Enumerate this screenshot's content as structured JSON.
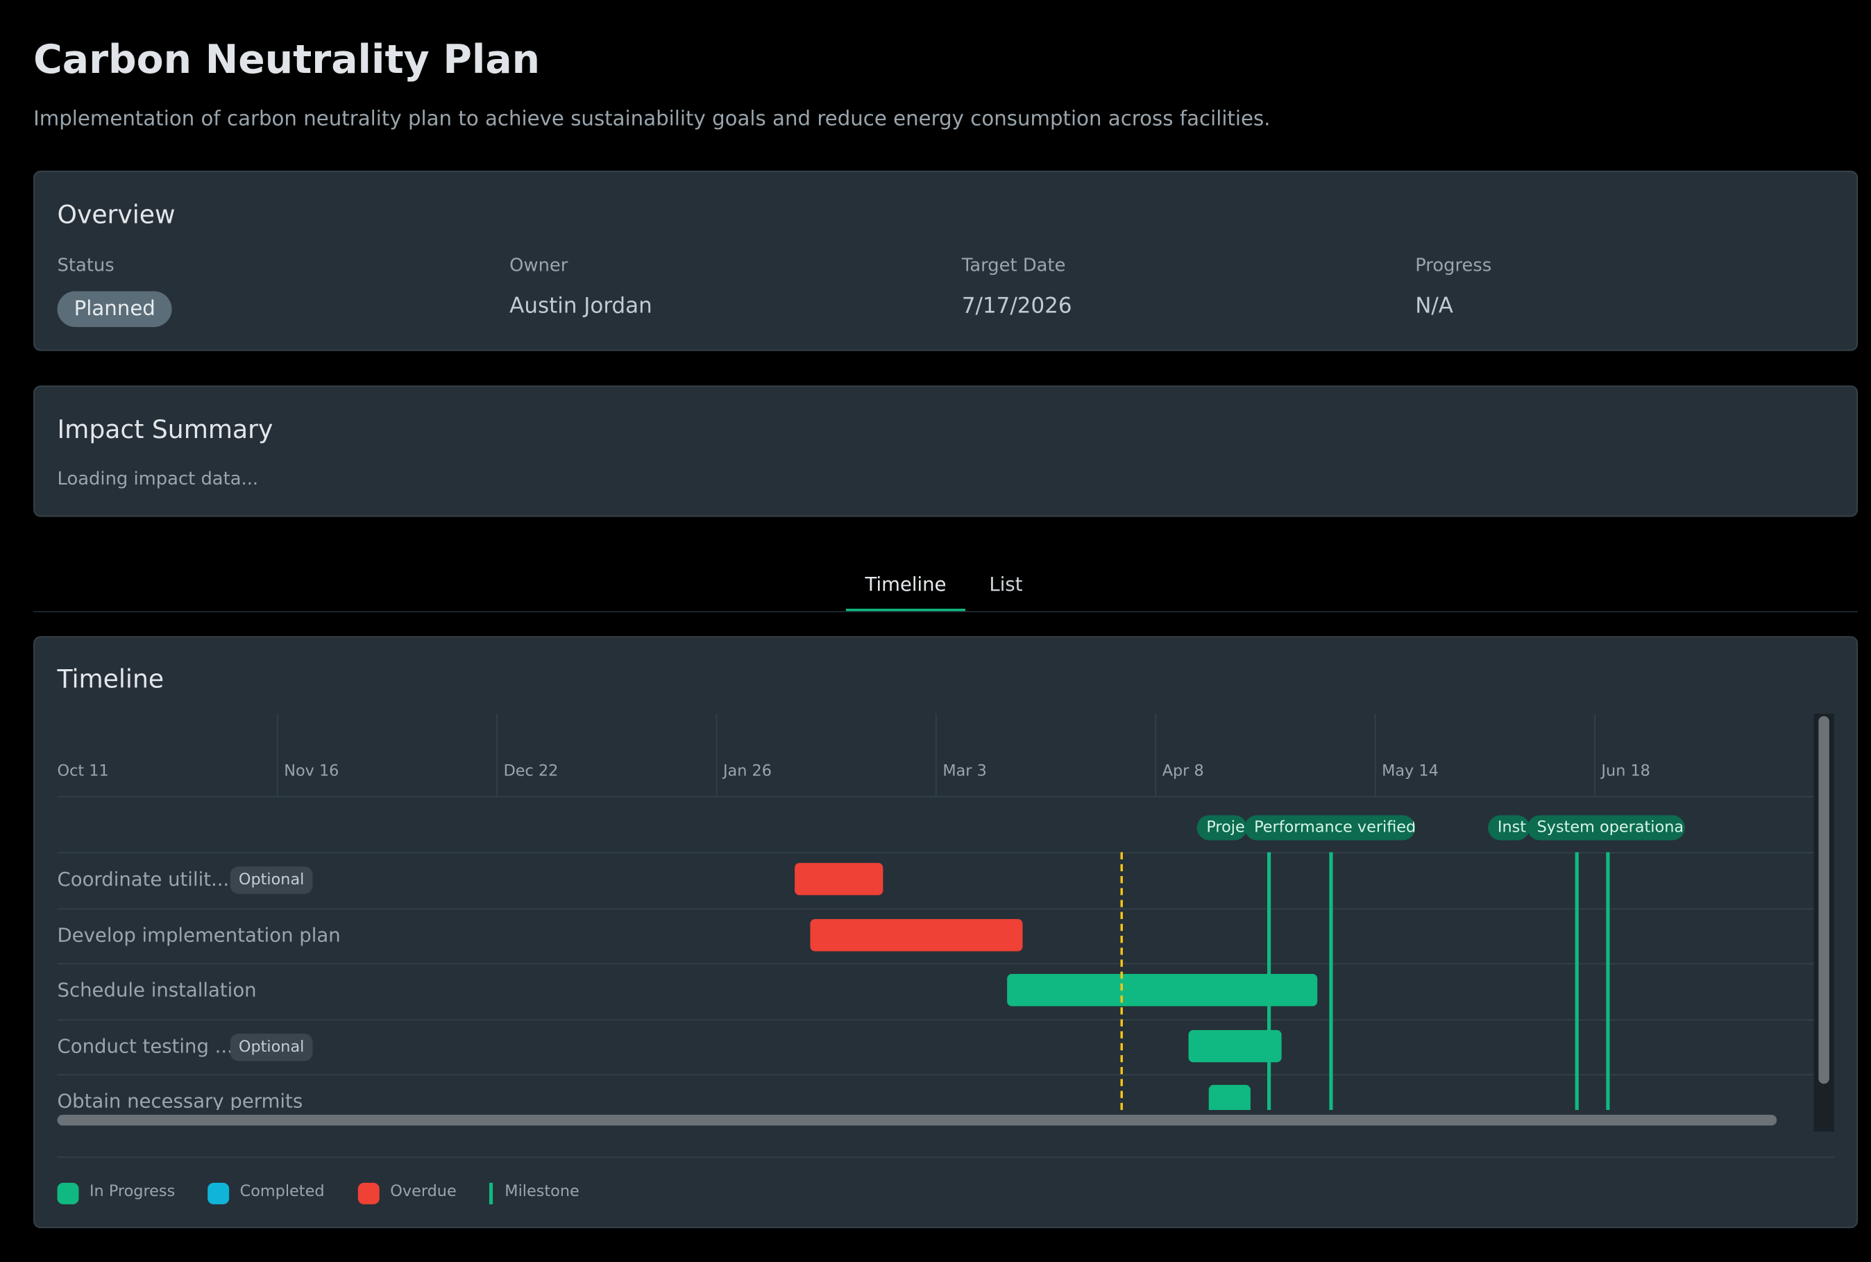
{
  "header": {
    "title": "Carbon Neutrality Plan",
    "description": "Implementation of carbon neutrality plan to achieve sustainability goals and reduce energy consumption across facilities."
  },
  "overview": {
    "title": "Overview",
    "fields": [
      {
        "label": "Status",
        "value": "Planned"
      },
      {
        "label": "Owner",
        "value": "Austin Jordan"
      },
      {
        "label": "Target Date",
        "value": "7/17/2026"
      },
      {
        "label": "Progress",
        "value": "N/A"
      }
    ]
  },
  "impact": {
    "title": "Impact Summary",
    "text": "Loading impact data..."
  },
  "tabs": [
    "Timeline",
    "List"
  ],
  "timeline": {
    "title": "Timeline",
    "dates": [
      "Oct 11",
      "Nov 16",
      "Dec 22",
      "Jan 26",
      "Mar 3",
      "Apr 8",
      "May 14",
      "Jun 18"
    ],
    "milestones": [
      "Proje",
      "Performance verified",
      "Inst",
      "System operational"
    ],
    "tasks": [
      {
        "name": "Coordinate utilit...",
        "badge": "Optional"
      },
      {
        "name": "Develop implementation plan"
      },
      {
        "name": "Schedule installation"
      },
      {
        "name": "Conduct testing ...",
        "badge": "Optional"
      },
      {
        "name": "Obtain necessary permits"
      }
    ],
    "legend": [
      "In Progress",
      "Completed",
      "Overdue",
      "Milestone"
    ]
  }
}
